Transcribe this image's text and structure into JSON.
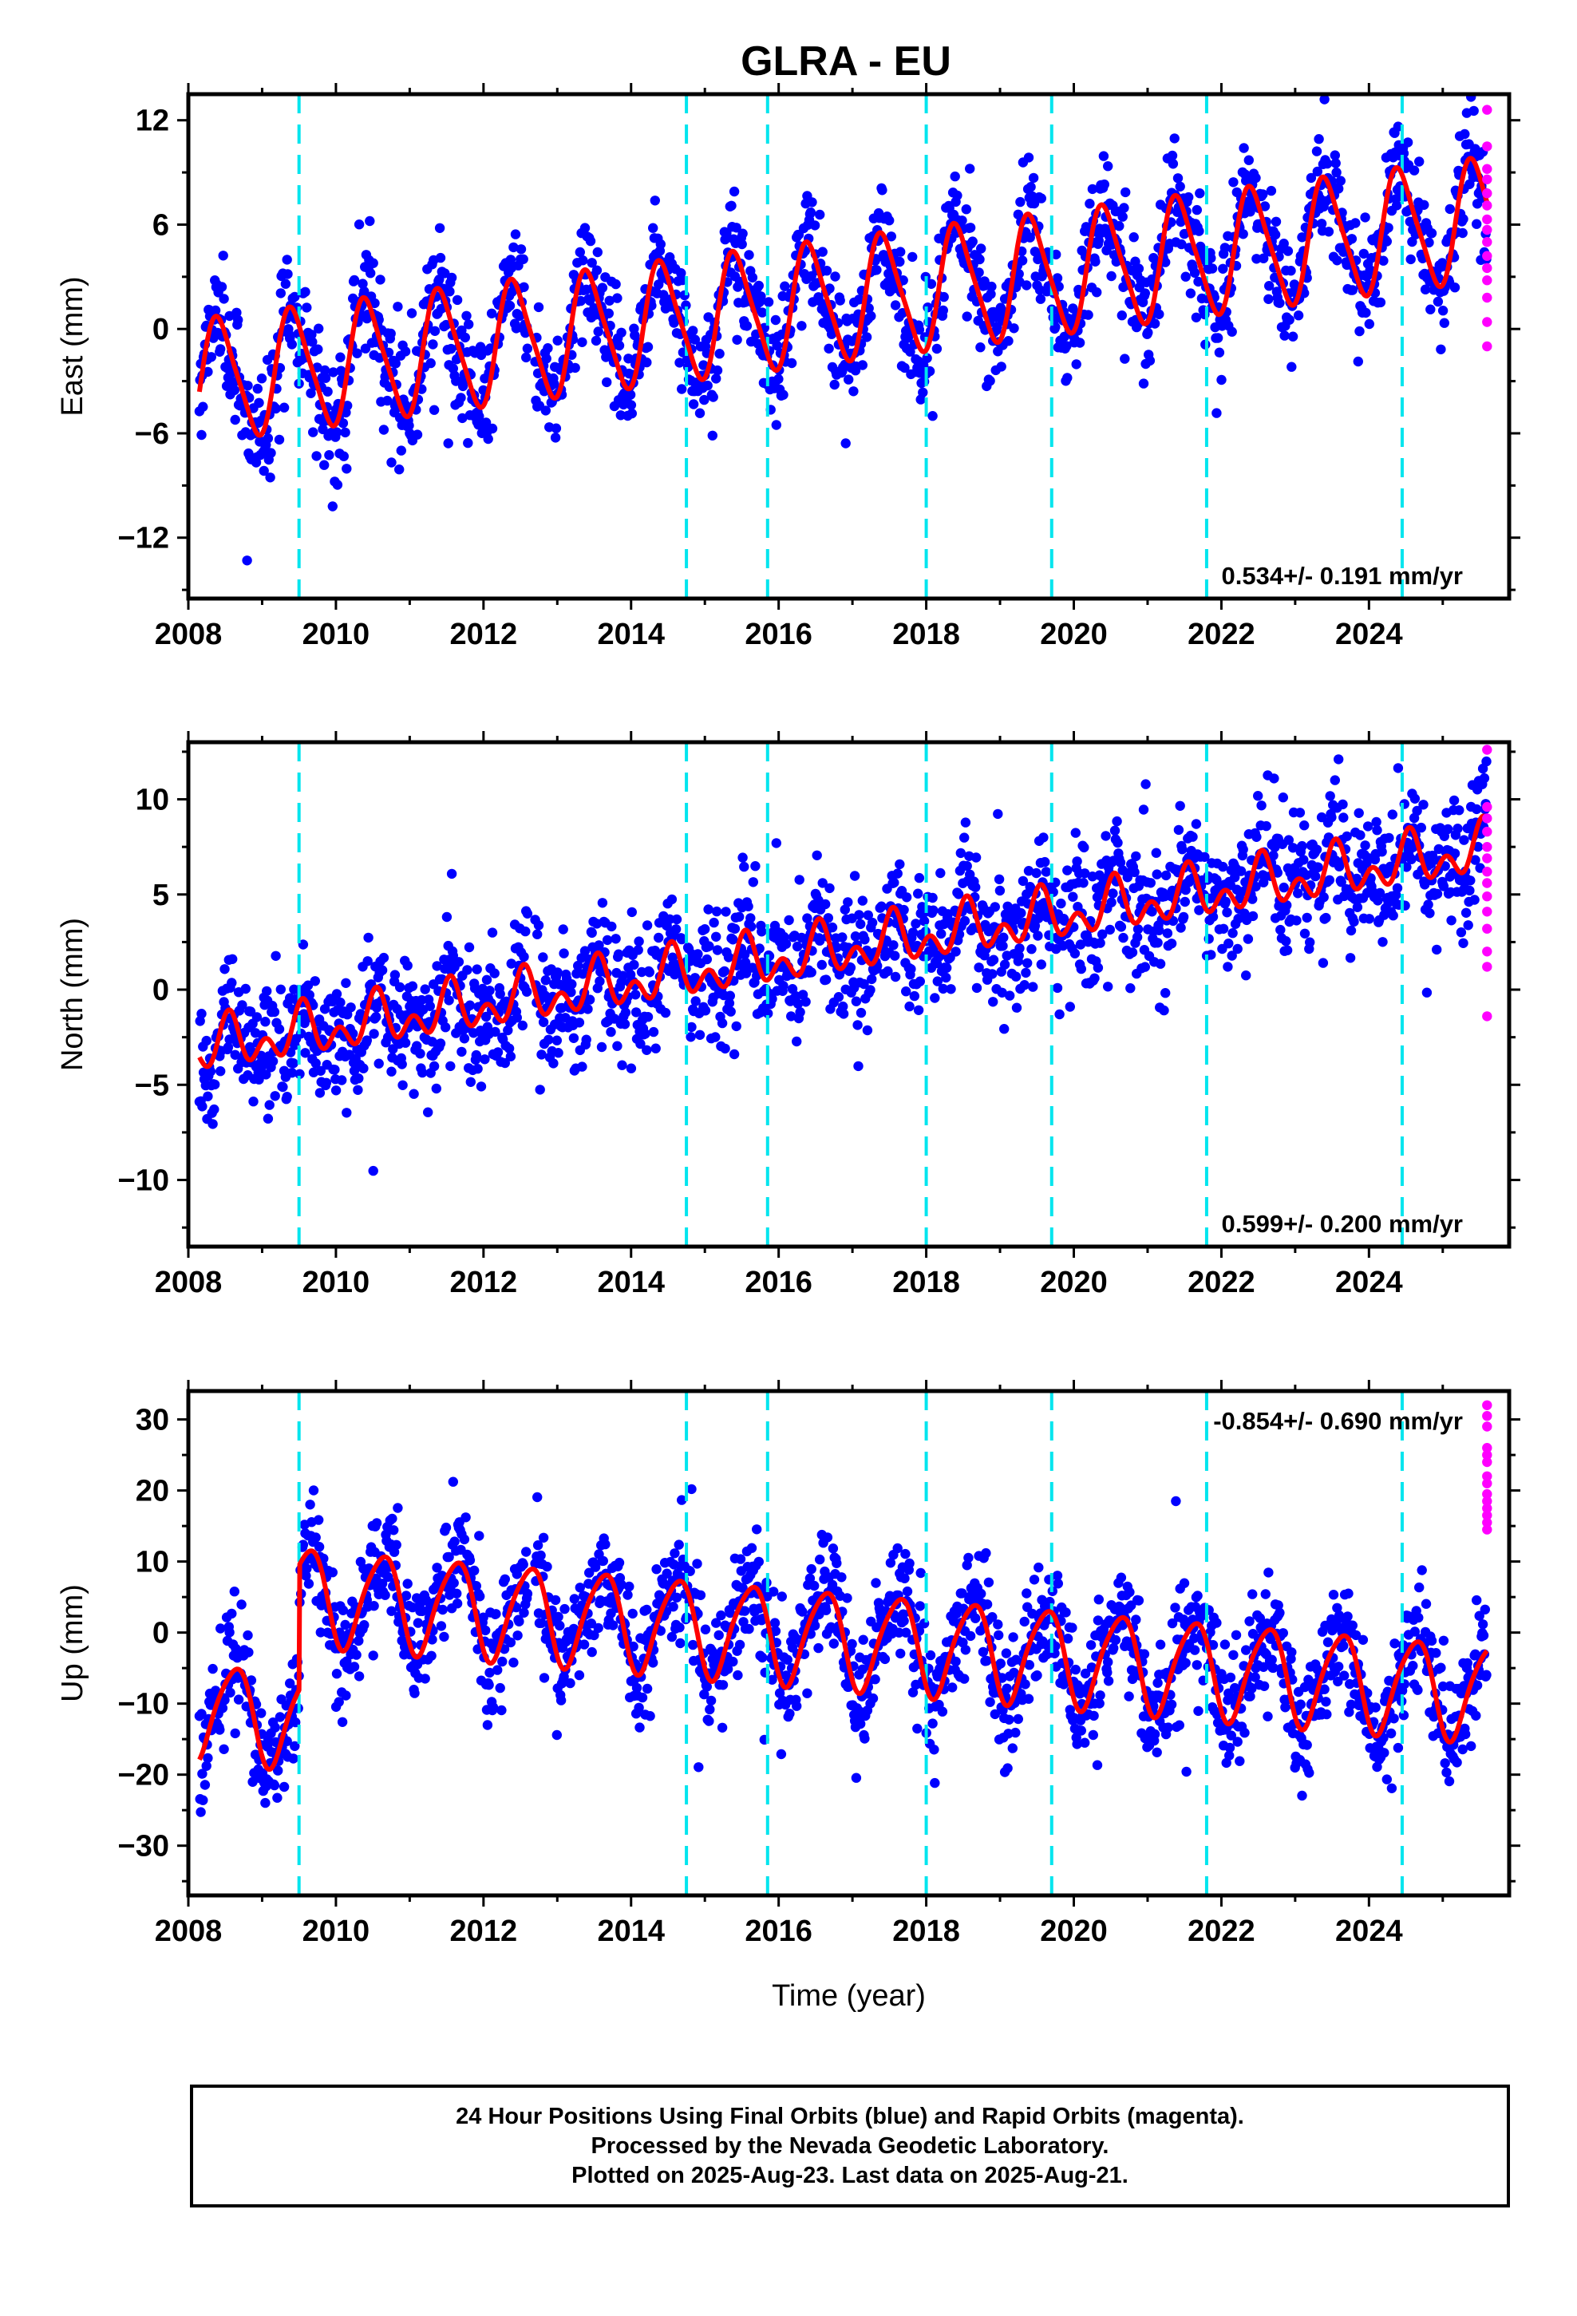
{
  "title": "GLRA - EU",
  "colors": {
    "final_points": "#0000ff",
    "rapid_points": "#ff00ff",
    "model_line": "#ff0000",
    "offset_lines": "#00e5ee",
    "frame": "#000000"
  },
  "chart_data": [
    {
      "type": "scatter",
      "name": "east",
      "ylabel": "East (mm)",
      "xlabel": "",
      "xlim": [
        2008.0,
        2025.9
      ],
      "ylim": [
        -15.5,
        13.5
      ],
      "xticks": [
        2008,
        2010,
        2012,
        2014,
        2016,
        2018,
        2020,
        2022,
        2024
      ],
      "yticks": [
        12,
        6,
        0,
        -6,
        -12
      ],
      "ytick_labels": [
        "12",
        "6",
        "0",
        "−6",
        "−12"
      ],
      "rate_label": "0.534+/- 0.191 mm/yr",
      "rate_position": "bottom-right",
      "offsets": [
        2009.5,
        2014.75,
        2015.85,
        2018.0,
        2019.7,
        2021.8,
        2024.45
      ],
      "model": {
        "start": 2008.15,
        "end": 2025.6,
        "intercept": -3.0,
        "trend": 0.534,
        "steps": [],
        "annual_amp": 3.4,
        "annual_phase": 2008.42,
        "semi_amp": 0.6,
        "semi_phase": 2008.3
      },
      "scatter_sigma": 1.7,
      "rapid_y": [
        12.6,
        10.5,
        9.2,
        8.6,
        7.8,
        7.1,
        6.3,
        5.7,
        5.0,
        4.2,
        3.5,
        2.8,
        1.8,
        0.4,
        -1.0
      ]
    },
    {
      "type": "scatter",
      "name": "north",
      "ylabel": "North (mm)",
      "xlabel": "",
      "xlim": [
        2008.0,
        2025.9
      ],
      "ylim": [
        -13.5,
        13.0
      ],
      "xticks": [
        2008,
        2010,
        2012,
        2014,
        2016,
        2018,
        2020,
        2022,
        2024
      ],
      "yticks": [
        10,
        5,
        0,
        -5,
        -10
      ],
      "ytick_labels": [
        "10",
        "5",
        "0",
        "−5",
        "−10"
      ],
      "rate_label": "0.599+/- 0.200 mm/yr",
      "rate_position": "bottom-right",
      "offsets": [
        2009.5,
        2014.75,
        2015.85,
        2018.0,
        2019.7,
        2021.8,
        2024.45
      ],
      "model": {
        "start": 2008.15,
        "end": 2025.6,
        "intercept": -3.1,
        "trend": 0.599,
        "steps": [],
        "annual_amp": 0.9,
        "annual_phase": 2008.55,
        "semi_amp": 0.9,
        "semi_phase": 2008.05
      },
      "scatter_sigma": 1.7,
      "rapid_y": [
        12.6,
        9.6,
        9.0,
        8.3,
        7.5,
        6.9,
        6.2,
        5.6,
        4.9,
        4.1,
        3.2,
        2.0,
        1.2,
        -1.4
      ]
    },
    {
      "type": "scatter",
      "name": "up",
      "ylabel": "Up (mm)",
      "xlabel": "Time (year)",
      "xlim": [
        2008.0,
        2025.9
      ],
      "ylim": [
        -37,
        34
      ],
      "xticks": [
        2008,
        2010,
        2012,
        2014,
        2016,
        2018,
        2020,
        2022,
        2024
      ],
      "yticks": [
        30,
        20,
        10,
        0,
        -10,
        -20,
        -30
      ],
      "ytick_labels": [
        "30",
        "20",
        "10",
        "0",
        "−10",
        "−20",
        "−30"
      ],
      "rate_label": "-0.854+/- 0.690 mm/yr",
      "rate_position": "top-right",
      "offsets": [
        2009.5,
        2014.75,
        2015.85,
        2018.0,
        2019.7,
        2021.8,
        2024.45
      ],
      "model": {
        "start": 2008.15,
        "end": 2025.6,
        "intercept": -11.0,
        "trend": -0.854,
        "steps": [
          {
            "t": 2009.5,
            "dy": 17.5
          }
        ],
        "annual_amp": 6.7,
        "annual_phase": 2008.62,
        "semi_amp": 1.0,
        "semi_phase": 2008.3
      },
      "scatter_sigma": 4.0,
      "rapid_y": [
        32.0,
        30.5,
        29.0,
        26.0,
        25.0,
        24.0,
        22.0,
        21.0,
        19.5,
        18.5,
        17.5,
        16.5,
        15.5,
        14.5
      ]
    }
  ],
  "caption": {
    "line1": "24 Hour Positions Using Final Orbits (blue) and Rapid Orbits (magenta).",
    "line2": "Processed by the Nevada Geodetic Laboratory.",
    "line3": "Plotted on 2025-Aug-23. Last data on 2025-Aug-21."
  }
}
